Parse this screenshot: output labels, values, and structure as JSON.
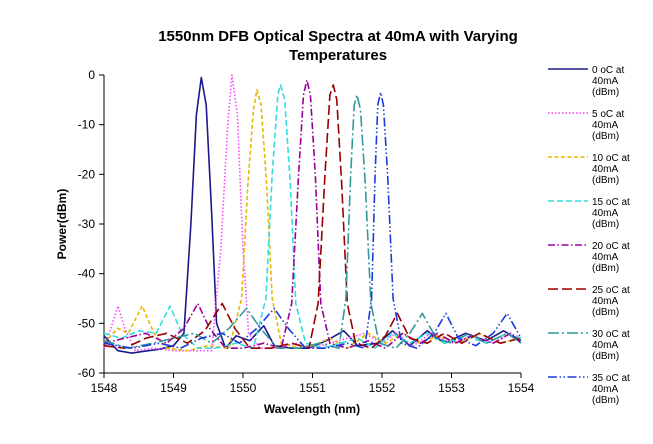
{
  "chart_data": {
    "type": "line",
    "title": [
      "1550nm DFB Optical Spectra at 40mA with Varying",
      "Temperatures"
    ],
    "xlabel": "Wavelength (nm)",
    "ylabel": "Power(dBm)",
    "xlim": [
      1548,
      1554
    ],
    "ylim": [
      -60,
      0
    ],
    "xticks": [
      1548,
      1549,
      1550,
      1551,
      1552,
      1553,
      1554
    ],
    "yticks": [
      0,
      -10,
      -20,
      -30,
      -40,
      -50,
      -60
    ],
    "grid": false,
    "legend_position": "right",
    "series": [
      {
        "name": [
          "0 oC at",
          "40mA",
          "(dBm)"
        ],
        "color": "#1a1a8c",
        "dash": "solid",
        "points": [
          [
            1548.0,
            -52.5
          ],
          [
            1548.2,
            -55.5
          ],
          [
            1548.4,
            -56
          ],
          [
            1548.6,
            -55.6
          ],
          [
            1548.8,
            -55.2
          ],
          [
            1549.0,
            -54.5
          ],
          [
            1549.15,
            -52
          ],
          [
            1549.25,
            -30
          ],
          [
            1549.33,
            -8
          ],
          [
            1549.4,
            -0.5
          ],
          [
            1549.47,
            -6
          ],
          [
            1549.55,
            -28
          ],
          [
            1549.62,
            -50
          ],
          [
            1549.75,
            -55
          ],
          [
            1549.9,
            -52.5
          ],
          [
            1550.1,
            -53.5
          ],
          [
            1550.3,
            -50.5
          ],
          [
            1550.45,
            -54.5
          ],
          [
            1550.7,
            -55
          ],
          [
            1550.95,
            -55
          ],
          [
            1551.2,
            -53.5
          ],
          [
            1551.45,
            -51.5
          ],
          [
            1551.65,
            -54.5
          ],
          [
            1551.95,
            -54
          ],
          [
            1552.15,
            -51.5
          ],
          [
            1552.4,
            -54.5
          ],
          [
            1552.65,
            -51.5
          ],
          [
            1552.9,
            -54
          ],
          [
            1553.2,
            -52
          ],
          [
            1553.5,
            -53.5
          ],
          [
            1553.75,
            -51.5
          ],
          [
            1554.0,
            -53.5
          ]
        ]
      },
      {
        "name": [
          "5 oC at",
          "40mA",
          "(dBm)"
        ],
        "color": "#ff44ff",
        "dash": "dot",
        "points": [
          [
            1548.0,
            -55
          ],
          [
            1548.1,
            -51
          ],
          [
            1548.2,
            -46.5
          ],
          [
            1548.3,
            -51
          ],
          [
            1548.45,
            -55.5
          ],
          [
            1548.7,
            -55
          ],
          [
            1549.0,
            -55.5
          ],
          [
            1549.3,
            -55.5
          ],
          [
            1549.55,
            -55.5
          ],
          [
            1549.68,
            -35
          ],
          [
            1549.78,
            -10
          ],
          [
            1549.84,
            0
          ],
          [
            1549.92,
            -8
          ],
          [
            1550.0,
            -35
          ],
          [
            1550.08,
            -52
          ],
          [
            1550.25,
            -55
          ],
          [
            1550.5,
            -55
          ],
          [
            1550.75,
            -54
          ],
          [
            1551.0,
            -55
          ],
          [
            1551.25,
            -54
          ],
          [
            1551.5,
            -53
          ],
          [
            1551.75,
            -52
          ],
          [
            1552.0,
            -54
          ],
          [
            1552.2,
            -52
          ],
          [
            1552.45,
            -54.5
          ],
          [
            1552.7,
            -52
          ],
          [
            1553.0,
            -54
          ],
          [
            1553.3,
            -52.5
          ],
          [
            1553.6,
            -54
          ],
          [
            1553.85,
            -52
          ],
          [
            1554.0,
            -53
          ]
        ]
      },
      {
        "name": [
          "10 oC at",
          "40mA",
          "(dBm)"
        ],
        "color": "#e6b800",
        "dash": "dash-short",
        "points": [
          [
            1548.0,
            -54
          ],
          [
            1548.2,
            -51
          ],
          [
            1548.35,
            -52
          ],
          [
            1548.55,
            -46.5
          ],
          [
            1548.72,
            -52
          ],
          [
            1548.9,
            -55
          ],
          [
            1549.2,
            -55.5
          ],
          [
            1549.5,
            -54.5
          ],
          [
            1549.8,
            -55
          ],
          [
            1549.98,
            -45
          ],
          [
            1550.07,
            -22
          ],
          [
            1550.15,
            -7
          ],
          [
            1550.2,
            -3
          ],
          [
            1550.26,
            -6
          ],
          [
            1550.34,
            -22
          ],
          [
            1550.42,
            -45
          ],
          [
            1550.55,
            -54
          ],
          [
            1550.8,
            -55
          ],
          [
            1551.0,
            -54.5
          ],
          [
            1551.25,
            -53
          ],
          [
            1551.5,
            -55
          ],
          [
            1551.8,
            -52
          ],
          [
            1552.05,
            -54
          ],
          [
            1552.3,
            -52
          ],
          [
            1552.55,
            -54
          ],
          [
            1552.8,
            -52.5
          ],
          [
            1553.1,
            -54
          ],
          [
            1553.4,
            -52
          ],
          [
            1553.7,
            -54
          ],
          [
            1554.0,
            -53
          ]
        ]
      },
      {
        "name": [
          "15 oC at",
          "40mA",
          "(dBm)"
        ],
        "color": "#33dddd",
        "dash": "dash-medium",
        "points": [
          [
            1548.0,
            -52
          ],
          [
            1548.25,
            -53
          ],
          [
            1548.5,
            -51.5
          ],
          [
            1548.75,
            -52
          ],
          [
            1548.95,
            -46.5
          ],
          [
            1549.12,
            -52
          ],
          [
            1549.35,
            -55
          ],
          [
            1549.6,
            -55
          ],
          [
            1549.9,
            -54
          ],
          [
            1550.15,
            -55
          ],
          [
            1550.33,
            -45
          ],
          [
            1550.42,
            -20
          ],
          [
            1550.5,
            -4
          ],
          [
            1550.54,
            -2
          ],
          [
            1550.6,
            -5
          ],
          [
            1550.68,
            -22
          ],
          [
            1550.76,
            -46
          ],
          [
            1550.9,
            -54
          ],
          [
            1551.15,
            -55
          ],
          [
            1551.4,
            -54
          ],
          [
            1551.65,
            -53
          ],
          [
            1551.9,
            -55
          ],
          [
            1552.15,
            -52
          ],
          [
            1552.4,
            -54
          ],
          [
            1552.65,
            -52
          ],
          [
            1552.9,
            -54
          ],
          [
            1553.2,
            -52.5
          ],
          [
            1553.5,
            -54
          ],
          [
            1553.8,
            -52
          ],
          [
            1554.0,
            -53
          ]
        ]
      },
      {
        "name": [
          "20 oC at",
          "40mA",
          "(dBm)"
        ],
        "color": "#990099",
        "dash": "dash-dot",
        "points": [
          [
            1548.0,
            -54
          ],
          [
            1548.3,
            -53
          ],
          [
            1548.6,
            -52
          ],
          [
            1548.9,
            -54
          ],
          [
            1549.15,
            -51
          ],
          [
            1549.35,
            -46
          ],
          [
            1549.52,
            -51
          ],
          [
            1549.75,
            -55
          ],
          [
            1550.0,
            -55
          ],
          [
            1550.3,
            -54
          ],
          [
            1550.55,
            -55
          ],
          [
            1550.7,
            -46
          ],
          [
            1550.8,
            -20
          ],
          [
            1550.87,
            -4
          ],
          [
            1550.92,
            -1
          ],
          [
            1550.97,
            -4
          ],
          [
            1551.04,
            -20
          ],
          [
            1551.12,
            -46
          ],
          [
            1551.25,
            -54
          ],
          [
            1551.5,
            -55
          ],
          [
            1551.8,
            -53.5
          ],
          [
            1552.05,
            -55
          ],
          [
            1552.3,
            -52
          ],
          [
            1552.55,
            -54
          ],
          [
            1552.8,
            -52
          ],
          [
            1553.05,
            -54
          ],
          [
            1553.3,
            -52.5
          ],
          [
            1553.6,
            -54
          ],
          [
            1553.85,
            -52
          ],
          [
            1554.0,
            -54
          ]
        ]
      },
      {
        "name": [
          "25 oC at",
          "40mA",
          "(dBm)"
        ],
        "color": "#990000",
        "dash": "dash-long",
        "points": [
          [
            1548.0,
            -54.5
          ],
          [
            1548.3,
            -55
          ],
          [
            1548.6,
            -53
          ],
          [
            1548.9,
            -52
          ],
          [
            1549.2,
            -54
          ],
          [
            1549.45,
            -51.5
          ],
          [
            1549.7,
            -46
          ],
          [
            1549.88,
            -51
          ],
          [
            1550.1,
            -55
          ],
          [
            1550.4,
            -55
          ],
          [
            1550.7,
            -54
          ],
          [
            1550.95,
            -55
          ],
          [
            1551.08,
            -46
          ],
          [
            1551.18,
            -20
          ],
          [
            1551.25,
            -4
          ],
          [
            1551.3,
            -2
          ],
          [
            1551.35,
            -5
          ],
          [
            1551.42,
            -22
          ],
          [
            1551.5,
            -46
          ],
          [
            1551.62,
            -54
          ],
          [
            1551.85,
            -55
          ],
          [
            1552.05,
            -52.5
          ],
          [
            1552.22,
            -48
          ],
          [
            1552.4,
            -53
          ],
          [
            1552.65,
            -54
          ],
          [
            1552.9,
            -52
          ],
          [
            1553.15,
            -54
          ],
          [
            1553.4,
            -52
          ],
          [
            1553.7,
            -54
          ],
          [
            1554.0,
            -53
          ]
        ]
      },
      {
        "name": [
          "30 oC at",
          "40mA",
          "(dBm)"
        ],
        "color": "#339999",
        "dash": "dash-dot-long",
        "points": [
          [
            1548.0,
            -53.5
          ],
          [
            1548.35,
            -55
          ],
          [
            1548.7,
            -54
          ],
          [
            1549.0,
            -53
          ],
          [
            1549.3,
            -52
          ],
          [
            1549.55,
            -54
          ],
          [
            1549.8,
            -51
          ],
          [
            1550.05,
            -47
          ],
          [
            1550.25,
            -51
          ],
          [
            1550.5,
            -55
          ],
          [
            1550.8,
            -55
          ],
          [
            1551.1,
            -54
          ],
          [
            1551.38,
            -55
          ],
          [
            1551.48,
            -45
          ],
          [
            1551.55,
            -20
          ],
          [
            1551.6,
            -6
          ],
          [
            1551.64,
            -4
          ],
          [
            1551.69,
            -7
          ],
          [
            1551.76,
            -22
          ],
          [
            1551.84,
            -46
          ],
          [
            1551.96,
            -54
          ],
          [
            1552.2,
            -55
          ],
          [
            1552.4,
            -52
          ],
          [
            1552.58,
            -48
          ],
          [
            1552.78,
            -53
          ],
          [
            1553.0,
            -54
          ],
          [
            1553.25,
            -52
          ],
          [
            1553.5,
            -54
          ],
          [
            1553.8,
            -52
          ],
          [
            1554.0,
            -54
          ]
        ]
      },
      {
        "name": [
          "35 oC at",
          "40mA",
          "(dBm)"
        ],
        "color": "#1a3cdd",
        "dash": "dash-dot-dot",
        "points": [
          [
            1548.0,
            -54
          ],
          [
            1548.4,
            -55
          ],
          [
            1548.8,
            -54
          ],
          [
            1549.1,
            -55
          ],
          [
            1549.4,
            -53
          ],
          [
            1549.7,
            -52
          ],
          [
            1549.95,
            -54
          ],
          [
            1550.2,
            -51
          ],
          [
            1550.45,
            -47
          ],
          [
            1550.65,
            -51
          ],
          [
            1550.9,
            -55
          ],
          [
            1551.2,
            -55
          ],
          [
            1551.5,
            -54
          ],
          [
            1551.75,
            -55
          ],
          [
            1551.85,
            -45
          ],
          [
            1551.9,
            -20
          ],
          [
            1551.94,
            -6
          ],
          [
            1551.98,
            -3.5
          ],
          [
            1552.02,
            -6
          ],
          [
            1552.08,
            -20
          ],
          [
            1552.16,
            -45
          ],
          [
            1552.28,
            -54
          ],
          [
            1552.5,
            -55
          ],
          [
            1552.75,
            -52
          ],
          [
            1552.92,
            -48
          ],
          [
            1553.1,
            -53
          ],
          [
            1553.35,
            -54.5
          ],
          [
            1553.6,
            -52
          ],
          [
            1553.8,
            -48
          ],
          [
            1554.0,
            -53
          ]
        ]
      }
    ]
  }
}
